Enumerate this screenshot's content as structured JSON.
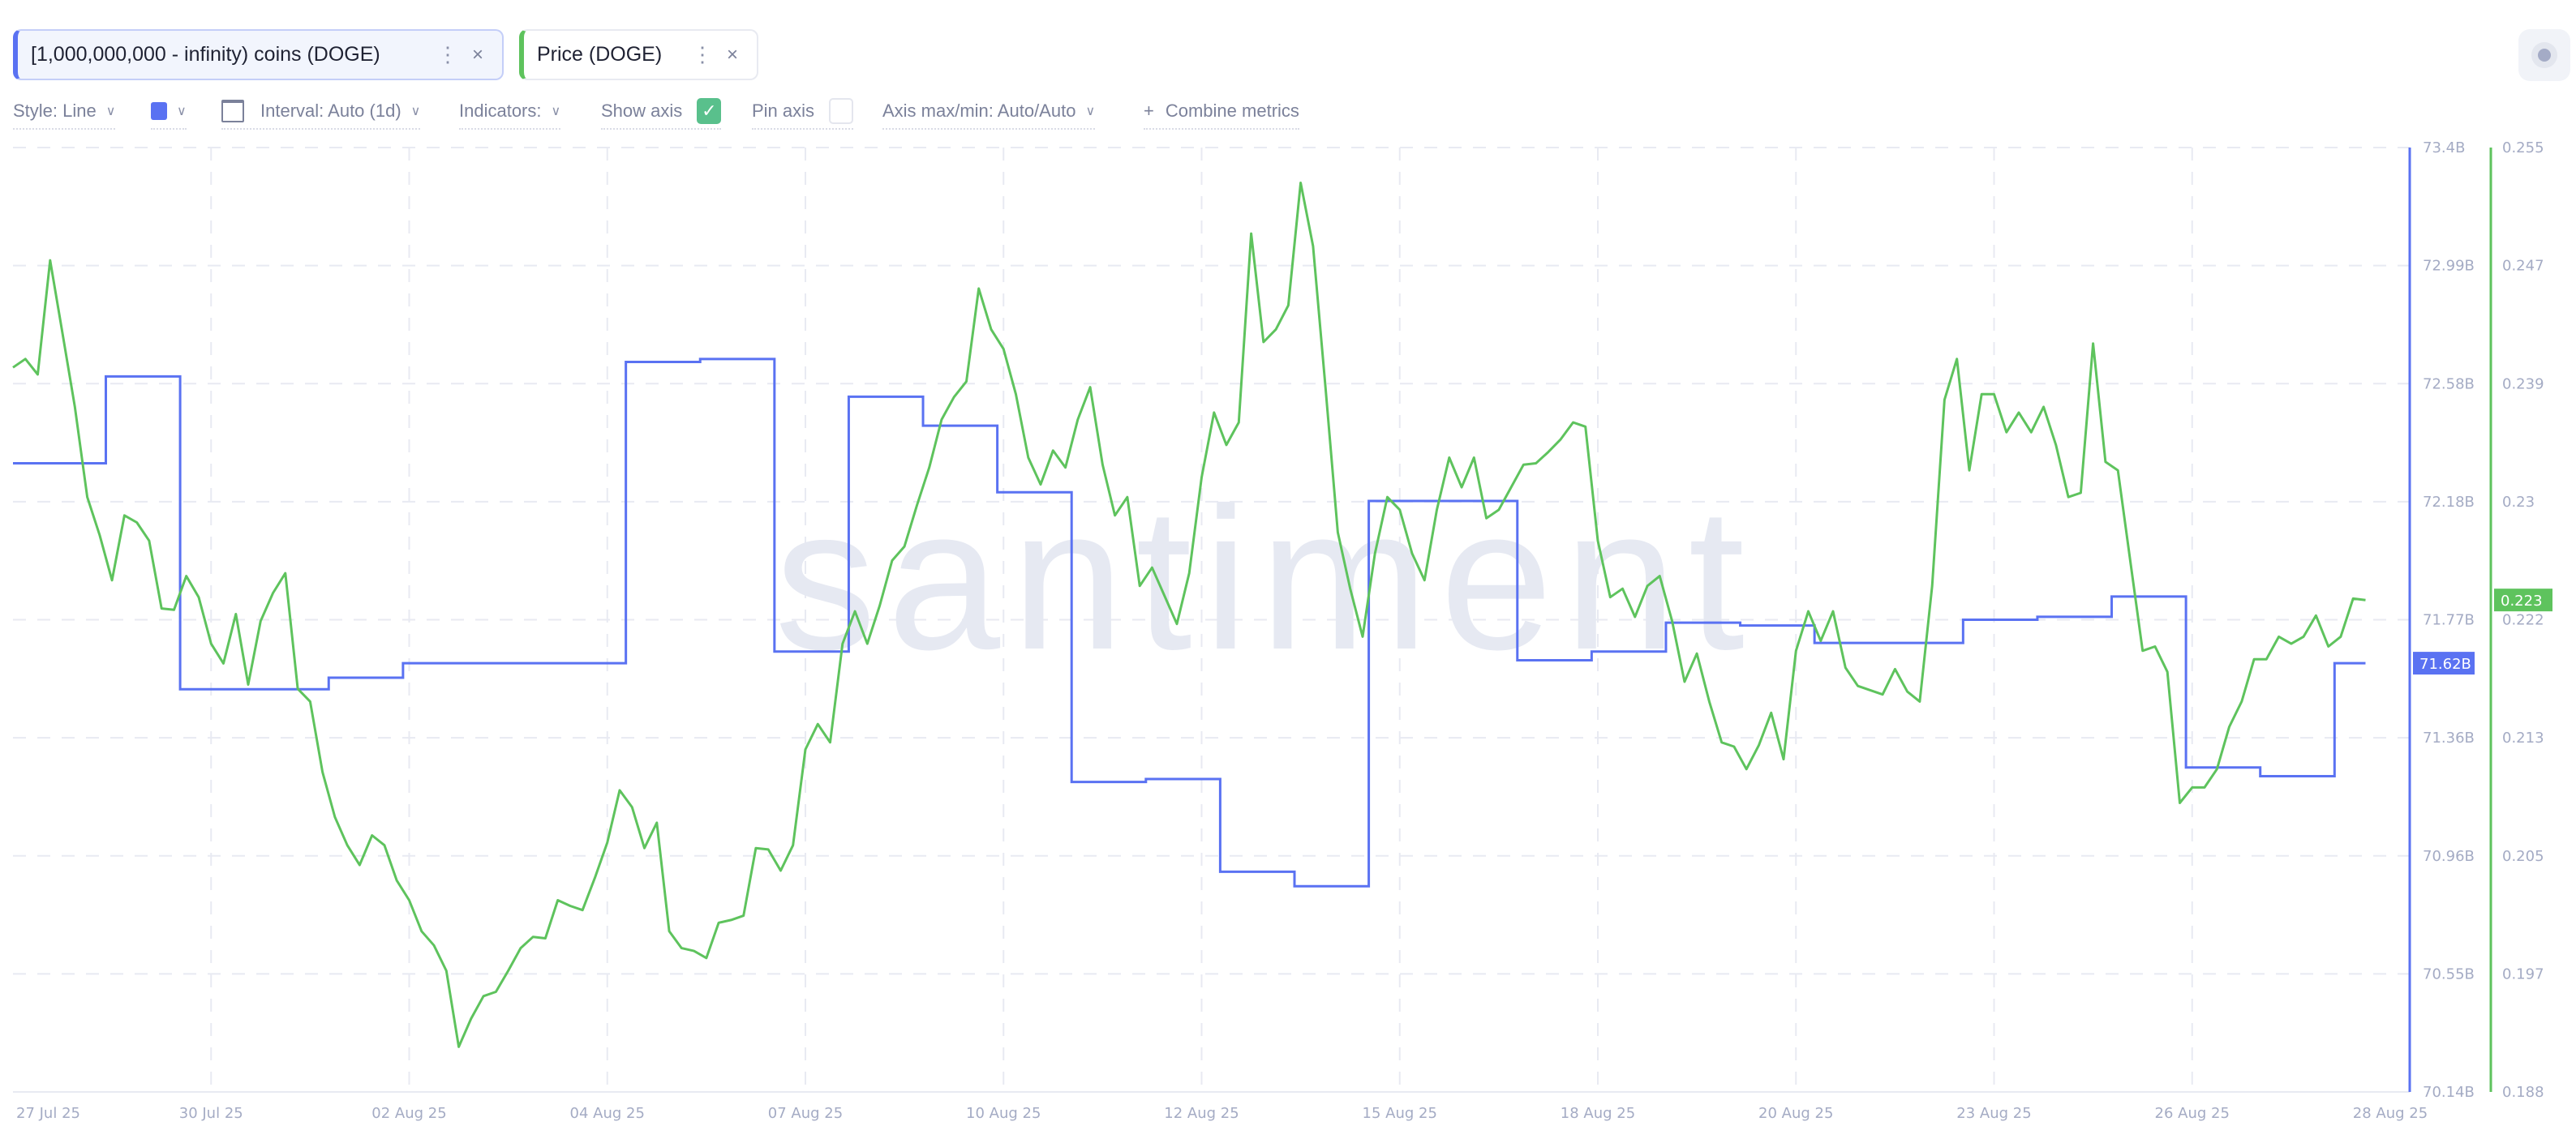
{
  "metrics": [
    {
      "label": "[1,000,000,000 - infinity) coins (DOGE)",
      "color": "#5a72f2"
    },
    {
      "label": "Price (DOGE)",
      "color": "#5ec35d"
    }
  ],
  "chip_icons": {
    "menu": "vertical-dots-icon",
    "close": "close-icon",
    "close_glyph": "×",
    "menu_glyph": "⋮"
  },
  "toolbar": {
    "style": "Style: Line",
    "interval": "Interval: Auto (1d)",
    "indicators": "Indicators:",
    "show_axis": "Show axis",
    "show_axis_checked": true,
    "pin_axis": "Pin axis",
    "pin_axis_checked": false,
    "axis_maxmin": "Axis max/min: Auto/Auto",
    "combine": "Combine metrics",
    "plus": "+",
    "chevron": "∨",
    "check": "✓"
  },
  "watermark": "santiment",
  "chart_data": {
    "type": "line",
    "grid": true,
    "x_ticks": [
      "27 Jul 25",
      "30 Jul 25",
      "02 Aug 25",
      "04 Aug 25",
      "07 Aug 25",
      "10 Aug 25",
      "12 Aug 25",
      "15 Aug 25",
      "18 Aug 25",
      "20 Aug 25",
      "23 Aug 25",
      "26 Aug 25",
      "28 Aug 25"
    ],
    "x_range": [
      "2025-07-27T00:00",
      "2025-08-28T00:00"
    ],
    "y_left": {
      "ticks": [
        "73.4B",
        "72.99B",
        "72.58B",
        "72.18B",
        "71.77B",
        "71.36B",
        "70.96B",
        "70.55B",
        "70.14B"
      ],
      "range": [
        70.14,
        73.4
      ],
      "unit": "B"
    },
    "y_right": {
      "ticks": [
        "0.255",
        "0.247",
        "0.239",
        "0.23",
        "0.222",
        "0.213",
        "0.205",
        "0.197",
        "0.188"
      ],
      "range": [
        0.188,
        0.255
      ]
    },
    "series": [
      {
        "name": "[1,000,000,000 - infinity) coins (DOGE)",
        "type": "step",
        "axis": "left",
        "color": "#5a72f2",
        "last_label": "71.62B",
        "end": "2025-08-27T16:00",
        "steps": [
          [
            "2025-07-27T00:00",
            72.31
          ],
          [
            "2025-07-28T06:00",
            72.61
          ],
          [
            "2025-07-29T06:00",
            71.53
          ],
          [
            "2025-07-31T06:00",
            71.57
          ],
          [
            "2025-08-01T06:00",
            71.62
          ],
          [
            "2025-08-04T06:00",
            72.66
          ],
          [
            "2025-08-05T06:00",
            72.67
          ],
          [
            "2025-08-06T06:00",
            71.66
          ],
          [
            "2025-08-07T06:00",
            72.54
          ],
          [
            "2025-08-08T06:00",
            72.44
          ],
          [
            "2025-08-09T06:00",
            72.21
          ],
          [
            "2025-08-10T06:00",
            71.21
          ],
          [
            "2025-08-11T06:00",
            71.22
          ],
          [
            "2025-08-12T06:00",
            70.9
          ],
          [
            "2025-08-13T06:00",
            70.85
          ],
          [
            "2025-08-14T06:00",
            72.18
          ],
          [
            "2025-08-16T06:00",
            71.63
          ],
          [
            "2025-08-17T06:00",
            71.66
          ],
          [
            "2025-08-18T06:00",
            71.76
          ],
          [
            "2025-08-19T06:00",
            71.75
          ],
          [
            "2025-08-20T06:00",
            71.69
          ],
          [
            "2025-08-22T06:00",
            71.77
          ],
          [
            "2025-08-23T06:00",
            71.78
          ],
          [
            "2025-08-24T06:00",
            71.85
          ],
          [
            "2025-08-25T06:00",
            71.26
          ],
          [
            "2025-08-26T06:00",
            71.23
          ],
          [
            "2025-08-27T06:00",
            71.62
          ]
        ]
      },
      {
        "name": "Price (DOGE)",
        "type": "line",
        "axis": "right",
        "color": "#5ec35d",
        "last_label": "0.223",
        "start": "2025-07-27T00:00",
        "interval_hours": 4,
        "values": [
          0.2394,
          0.24,
          0.2389,
          0.247,
          0.2418,
          0.2366,
          0.2302,
          0.2275,
          0.2243,
          0.2289,
          0.2284,
          0.2271,
          0.2223,
          0.2222,
          0.2246,
          0.2231,
          0.2198,
          0.2184,
          0.2219,
          0.2169,
          0.2214,
          0.2234,
          0.2248,
          0.2166,
          0.2157,
          0.2107,
          0.2075,
          0.2055,
          0.2041,
          0.2062,
          0.2055,
          0.203,
          0.2016,
          0.1994,
          0.1984,
          0.1966,
          0.1912,
          0.1932,
          0.1948,
          0.1951,
          0.1966,
          0.1982,
          0.199,
          0.1989,
          0.2016,
          0.2012,
          0.2009,
          0.2032,
          0.2057,
          0.2094,
          0.2082,
          0.2053,
          0.2071,
          0.1994,
          0.1982,
          0.198,
          0.1975,
          0.2,
          0.2002,
          0.2005,
          0.2053,
          0.2052,
          0.2037,
          0.2055,
          0.2123,
          0.2141,
          0.2128,
          0.2198,
          0.2221,
          0.2198,
          0.2225,
          0.2257,
          0.2267,
          0.2296,
          0.2323,
          0.2357,
          0.2373,
          0.2384,
          0.245,
          0.2421,
          0.2407,
          0.2375,
          0.233,
          0.2311,
          0.2335,
          0.2323,
          0.2357,
          0.238,
          0.2325,
          0.2289,
          0.2302,
          0.2239,
          0.2252,
          0.2232,
          0.2212,
          0.2248,
          0.2316,
          0.2362,
          0.2339,
          0.2355,
          0.2489,
          0.2412,
          0.2421,
          0.2438,
          0.2525,
          0.248,
          0.238,
          0.2277,
          0.2237,
          0.2203,
          0.2262,
          0.2302,
          0.2293,
          0.2262,
          0.2243,
          0.2293,
          0.233,
          0.2309,
          0.233,
          0.2287,
          0.2293,
          0.2309,
          0.2325,
          0.2326,
          0.2334,
          0.2343,
          0.2355,
          0.2352,
          0.2271,
          0.2231,
          0.2237,
          0.2217,
          0.2239,
          0.2246,
          0.2214,
          0.2171,
          0.2191,
          0.2157,
          0.2128,
          0.2125,
          0.2109,
          0.2126,
          0.2149,
          0.2116,
          0.2193,
          0.2221,
          0.22,
          0.2221,
          0.2181,
          0.2168,
          0.2165,
          0.2162,
          0.218,
          0.2164,
          0.2157,
          0.2239,
          0.2371,
          0.24,
          0.2321,
          0.2375,
          0.2375,
          0.2348,
          0.2362,
          0.2348,
          0.2366,
          0.2339,
          0.2302,
          0.2305,
          0.2411,
          0.2327,
          0.2321,
          0.2257,
          0.2193,
          0.2196,
          0.2178,
          0.2085,
          0.2096,
          0.2096,
          0.2109,
          0.2139,
          0.2157,
          0.2187,
          0.2187,
          0.2203,
          0.2198,
          0.2203,
          0.2218,
          0.2196,
          0.2203,
          0.223,
          0.2229
        ]
      }
    ]
  }
}
